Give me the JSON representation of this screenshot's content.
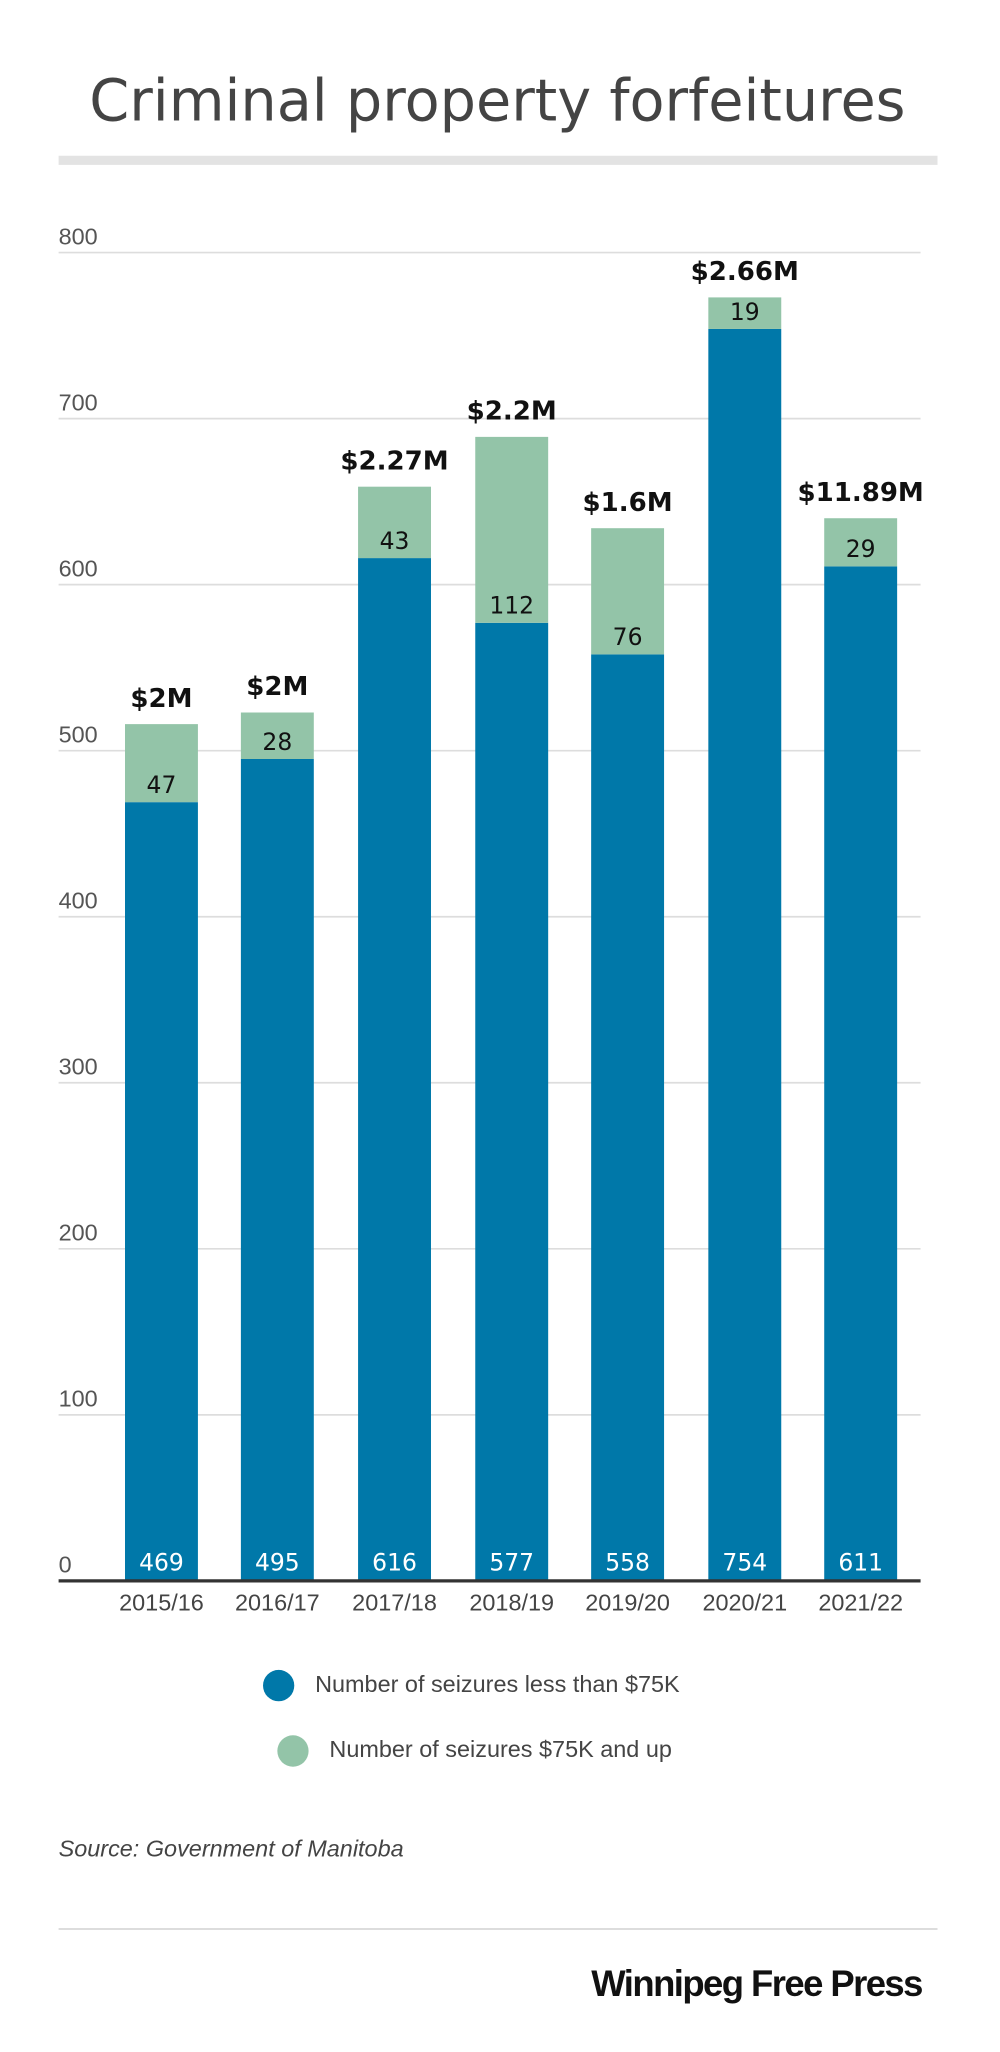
{
  "chart_data": {
    "type": "stacked_bar",
    "title": "Criminal property forfeitures",
    "categories": [
      "2015/16",
      "2016/17",
      "2017/18",
      "2018/19",
      "2019/20",
      "2020/21",
      "2021/22"
    ],
    "series": [
      {
        "name": "Number of seizures less than $75K",
        "color": "#0078a9",
        "values": [
          469,
          495,
          616,
          577,
          558,
          754,
          611
        ]
      },
      {
        "name": "Number of seizures $75K and up",
        "color": "#93c4a8",
        "values": [
          47,
          28,
          43,
          112,
          76,
          19,
          29
        ]
      }
    ],
    "annotations": [
      "$2M",
      "$2M",
      "$2.27M",
      "$2.2M",
      "$1.6M",
      "$2.66M",
      "$11.89M"
    ],
    "ylim": [
      0,
      800
    ],
    "yticks": [
      0,
      100,
      200,
      300,
      400,
      500,
      600,
      700,
      800
    ],
    "grid": true,
    "source": "Source: Government of Manitoba",
    "publisher": "Winnipeg Free Press"
  }
}
